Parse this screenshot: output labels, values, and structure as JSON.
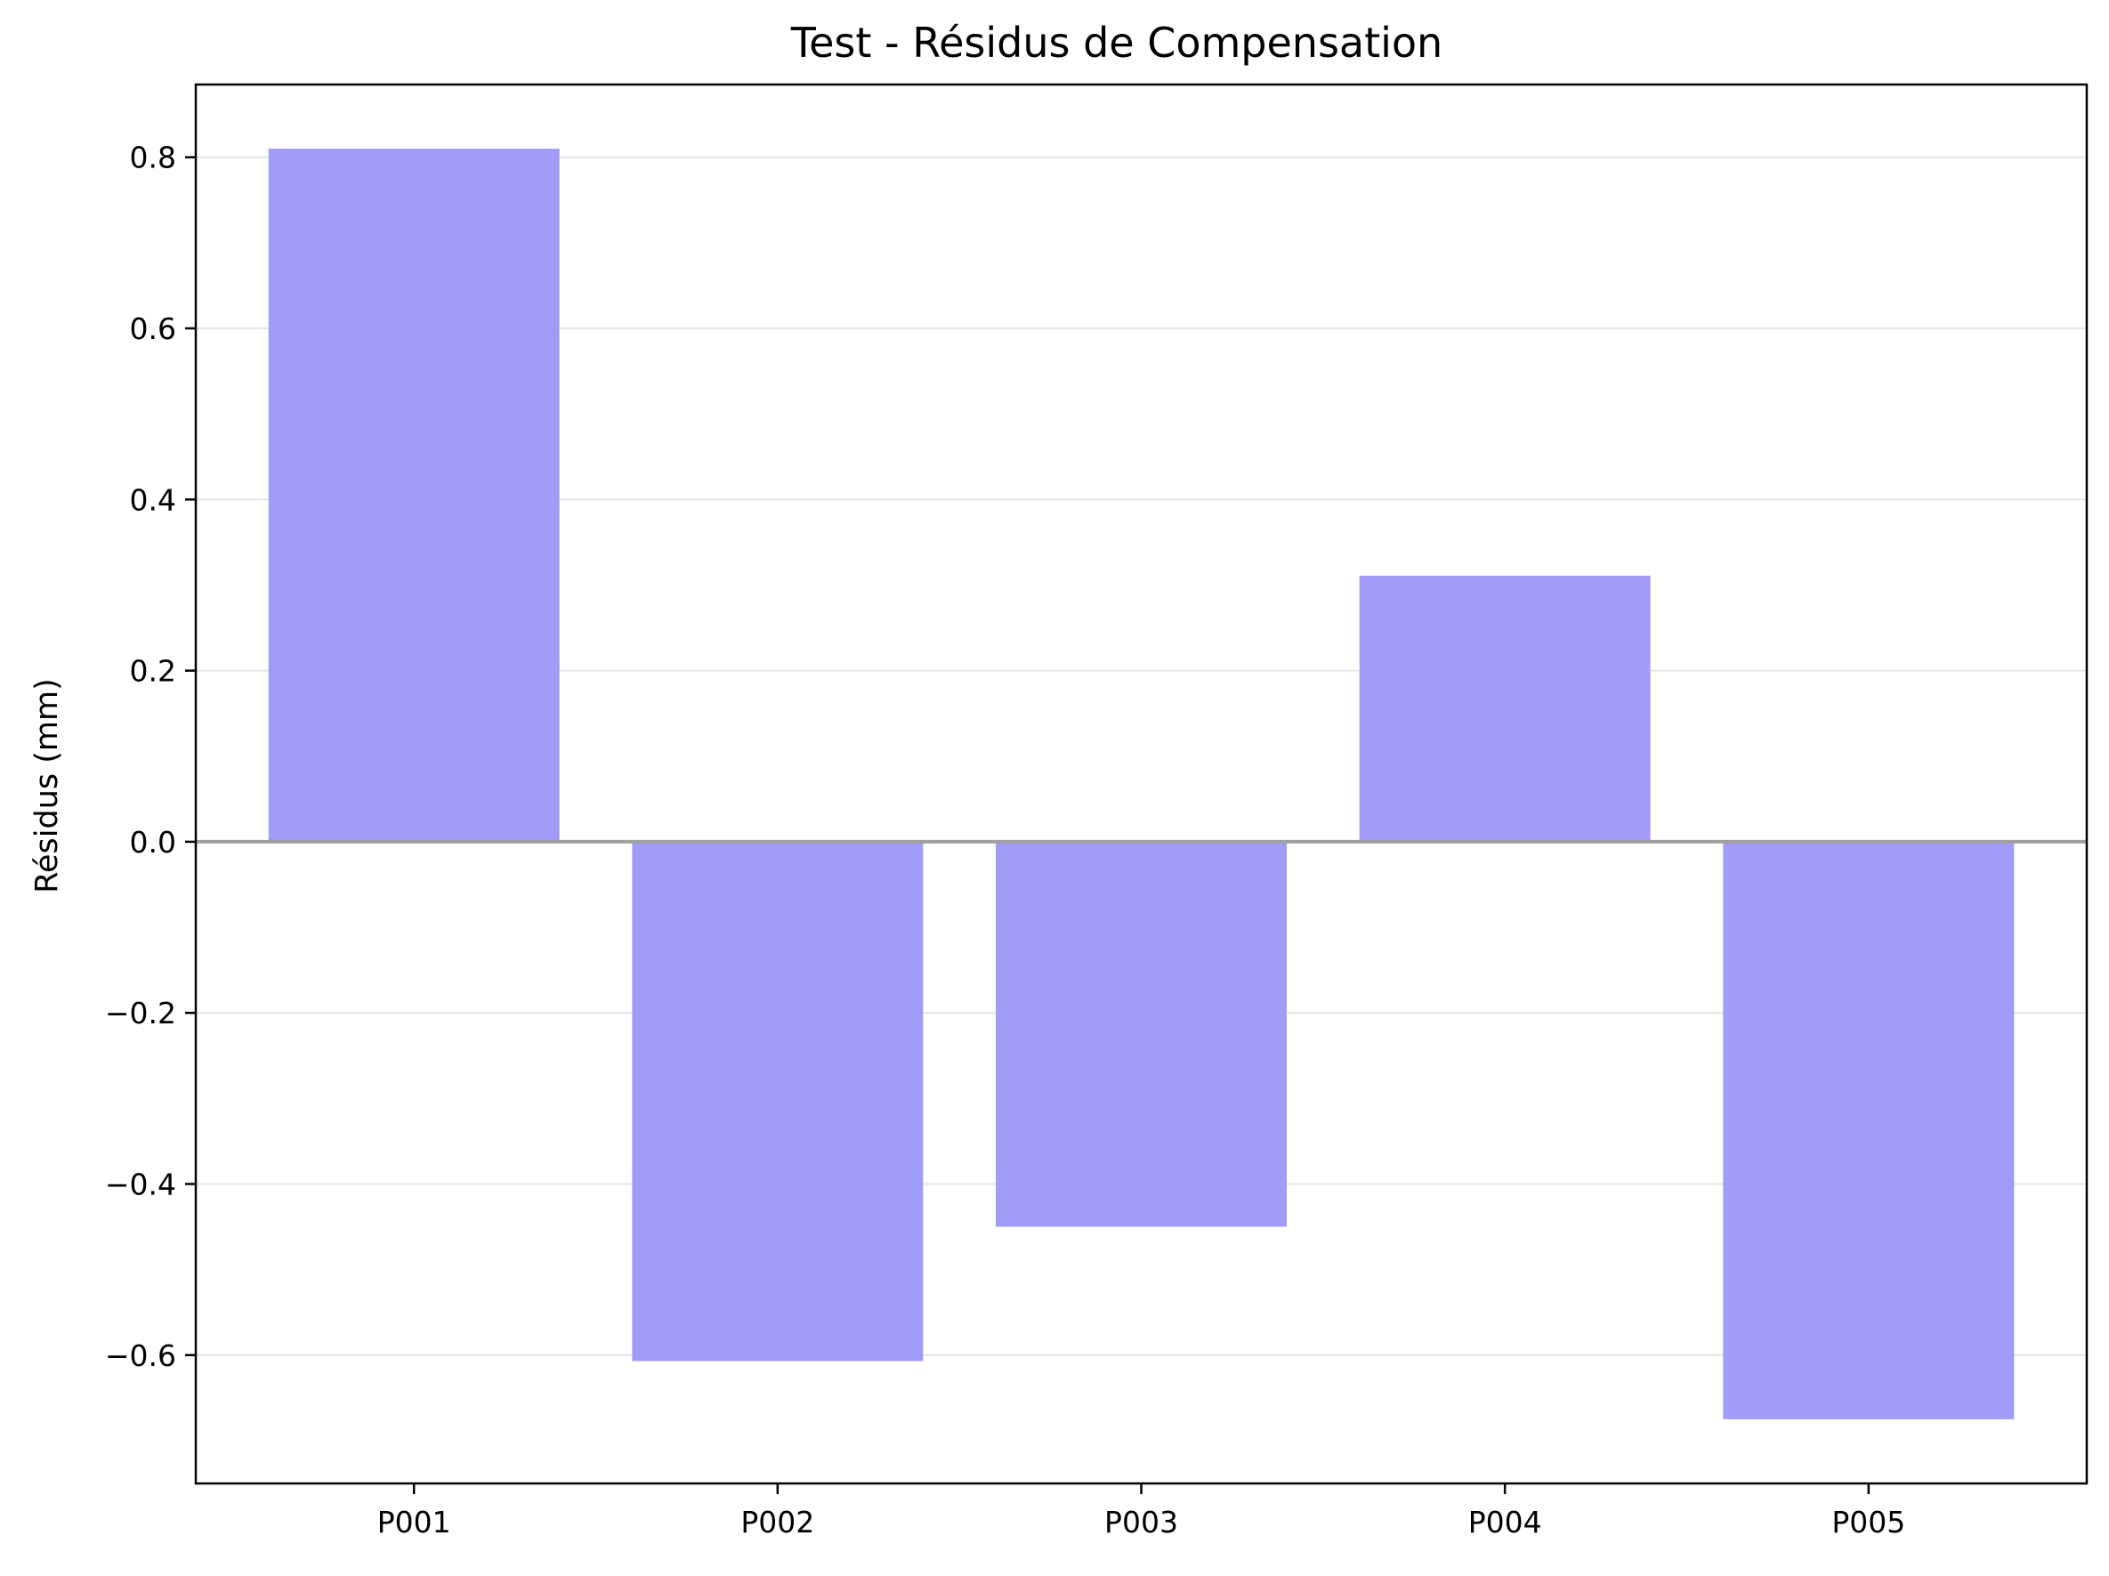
{
  "chart_data": {
    "type": "bar",
    "title": "Test - Résidus de Compensation",
    "xlabel": "",
    "ylabel": "Résidus (mm)",
    "categories": [
      "P001",
      "P002",
      "P003",
      "P004",
      "P005"
    ],
    "values": [
      0.81,
      -0.607,
      -0.45,
      0.311,
      -0.675
    ],
    "ylim": [
      -0.75,
      0.885
    ],
    "yticks": [
      -0.6,
      -0.4,
      -0.2,
      0.0,
      0.2,
      0.4,
      0.6,
      0.8
    ],
    "ytick_labels": [
      "−0.6",
      "−0.4",
      "−0.2",
      "0.0",
      "0.2",
      "0.4",
      "0.6",
      "0.8"
    ],
    "grid": "y",
    "zero_line": true,
    "bar_color": "#a09cf8",
    "zero_line_color": "#a0a0a0",
    "grid_color": "#e6e6e6"
  }
}
